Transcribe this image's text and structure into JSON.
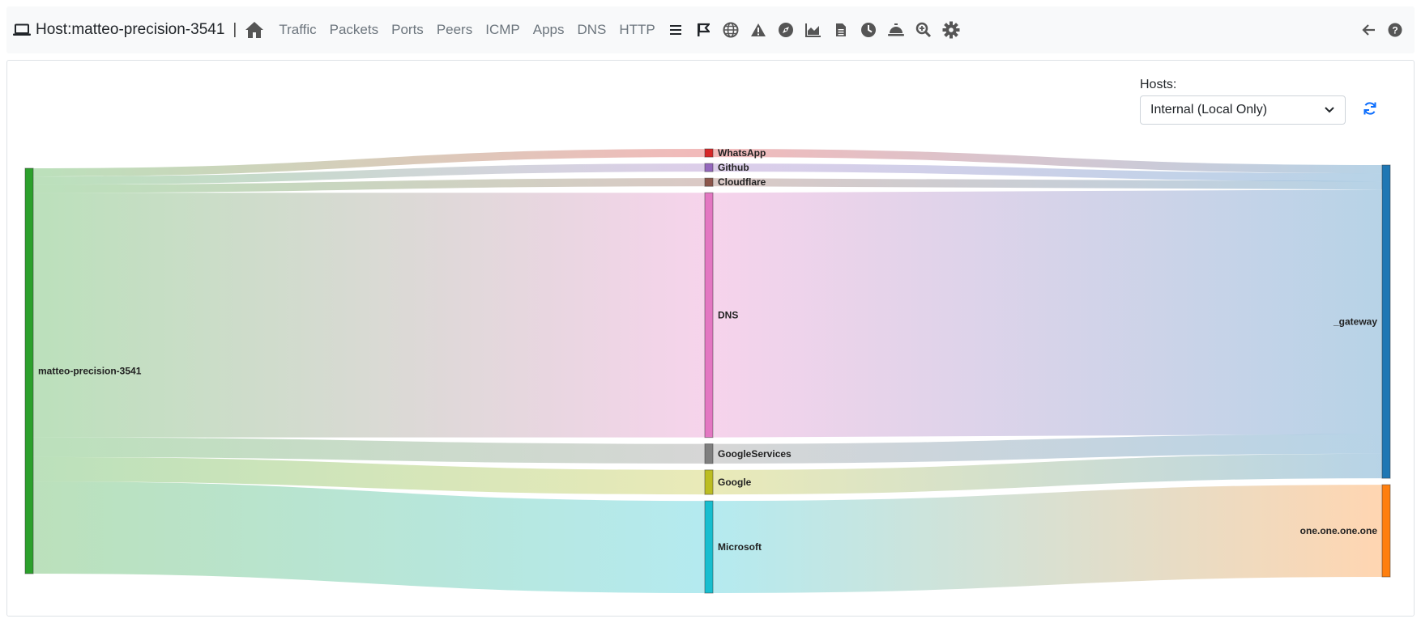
{
  "navbar": {
    "host_prefix": "Host: ",
    "host_name": "matteo-precision-3541",
    "separator": "|",
    "links": [
      "Traffic",
      "Packets",
      "Ports",
      "Peers",
      "ICMP",
      "Apps",
      "DNS",
      "HTTP"
    ],
    "icons": [
      "list-icon",
      "flag-icon",
      "globe-icon",
      "warning-icon",
      "compass-icon",
      "area-chart-icon",
      "file-icon",
      "clock-icon",
      "concierge-bell-icon",
      "search-plus-icon",
      "gear-icon"
    ],
    "right_icons": [
      "back-arrow-icon",
      "help-icon"
    ]
  },
  "filter": {
    "label": "Hosts:",
    "selected": "Internal (Local Only)"
  },
  "colors": {
    "accent": "#0d6efd",
    "source_node": "#2ca02c",
    "gateway_node": "#1f77b4",
    "one_node": "#ff7f0e"
  },
  "sankey": {
    "nodes": [
      {
        "id": "matteo-precision-3541",
        "label": "matteo-precision-3541",
        "color": "#2ca02c",
        "column": 0
      },
      {
        "id": "WhatsApp",
        "label": "WhatsApp",
        "color": "#d62728",
        "column": 1
      },
      {
        "id": "Github",
        "label": "Github",
        "color": "#9467bd",
        "column": 1
      },
      {
        "id": "Cloudflare",
        "label": "Cloudflare",
        "color": "#8c564b",
        "column": 1
      },
      {
        "id": "DNS",
        "label": "DNS",
        "color": "#e377c2",
        "column": 1
      },
      {
        "id": "GoogleServices",
        "label": "GoogleServices",
        "color": "#7f7f7f",
        "column": 1
      },
      {
        "id": "Google",
        "label": "Google",
        "color": "#bcbd22",
        "column": 1
      },
      {
        "id": "Microsoft",
        "label": "Microsoft",
        "color": "#17becf",
        "column": 1
      },
      {
        "id": "_gateway",
        "label": "_gateway",
        "color": "#1f77b4",
        "column": 2
      },
      {
        "id": "one.one.one.one",
        "label": "one.one.one.one",
        "color": "#ff7f0e",
        "column": 2
      }
    ],
    "links": [
      {
        "source": "matteo-precision-3541",
        "target": "WhatsApp",
        "value": 1
      },
      {
        "source": "matteo-precision-3541",
        "target": "Github",
        "value": 1
      },
      {
        "source": "matteo-precision-3541",
        "target": "Cloudflare",
        "value": 1
      },
      {
        "source": "matteo-precision-3541",
        "target": "DNS",
        "value": 30
      },
      {
        "source": "matteo-precision-3541",
        "target": "GoogleServices",
        "value": 2.4
      },
      {
        "source": "matteo-precision-3541",
        "target": "Google",
        "value": 3
      },
      {
        "source": "matteo-precision-3541",
        "target": "Microsoft",
        "value": 11.3
      },
      {
        "source": "WhatsApp",
        "target": "_gateway",
        "value": 1
      },
      {
        "source": "Github",
        "target": "_gateway",
        "value": 1
      },
      {
        "source": "Cloudflare",
        "target": "_gateway",
        "value": 1
      },
      {
        "source": "DNS",
        "target": "_gateway",
        "value": 30
      },
      {
        "source": "GoogleServices",
        "target": "_gateway",
        "value": 2.4
      },
      {
        "source": "Google",
        "target": "_gateway",
        "value": 3
      },
      {
        "source": "Microsoft",
        "target": "one.one.one.one",
        "value": 11.3
      }
    ]
  }
}
